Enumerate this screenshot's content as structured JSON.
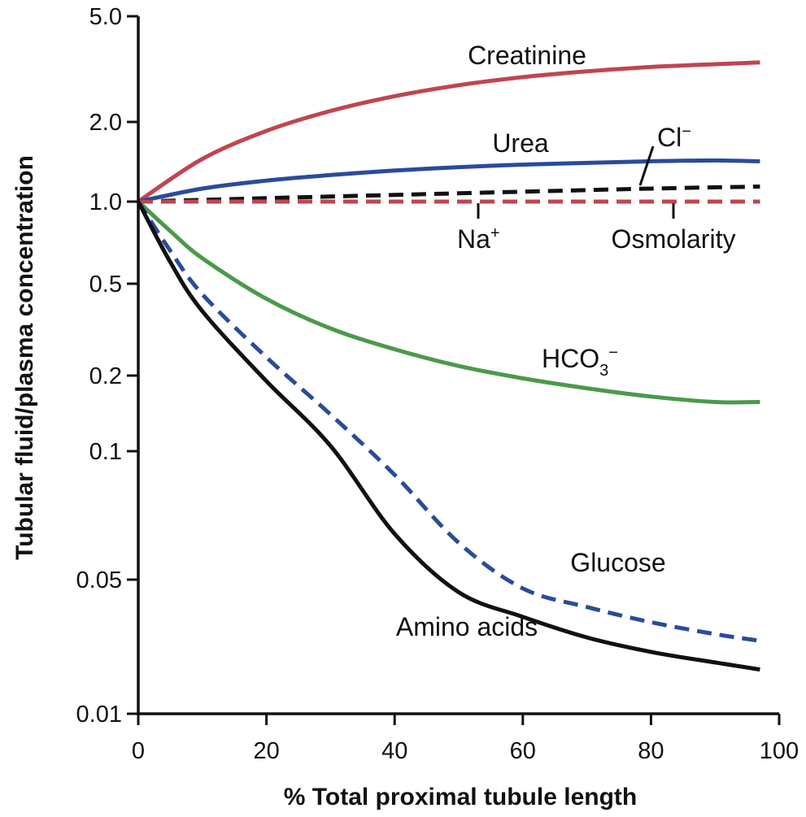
{
  "chart_data": {
    "type": "line",
    "xlabel": "% Total proximal tubule length",
    "ylabel": "Tubular fluid/plasma concentration",
    "xlim": [
      0,
      100
    ],
    "ylim": [
      0.01,
      5.0
    ],
    "yscale": "log",
    "grid": false,
    "x_ticks": [
      "0",
      "20",
      "40",
      "60",
      "80",
      "100"
    ],
    "y_ticks": [
      "0.01",
      "0.05",
      "0.1",
      "0.2",
      "0.5",
      "1.0",
      "2.0",
      "5.0"
    ],
    "series": [
      {
        "name": "Creatinine",
        "color": "#c0454f",
        "dash": false,
        "x": [
          0,
          10,
          20,
          30,
          40,
          50,
          60,
          70,
          80,
          90,
          97
        ],
        "y": [
          1.0,
          1.45,
          1.85,
          2.2,
          2.5,
          2.75,
          2.95,
          3.1,
          3.22,
          3.3,
          3.35
        ]
      },
      {
        "name": "Urea",
        "color": "#2a4b9b",
        "dash": false,
        "x": [
          0,
          10,
          20,
          30,
          40,
          50,
          60,
          70,
          80,
          90,
          97
        ],
        "y": [
          1.0,
          1.12,
          1.2,
          1.26,
          1.31,
          1.35,
          1.38,
          1.4,
          1.42,
          1.43,
          1.42
        ]
      },
      {
        "name": "Cl⁻",
        "color": "#111111",
        "dash": true,
        "x": [
          0,
          20,
          40,
          60,
          80,
          97
        ],
        "y": [
          1.0,
          1.03,
          1.06,
          1.09,
          1.12,
          1.14
        ]
      },
      {
        "name": "Na⁺",
        "color": "#c0454f",
        "dash": true,
        "x": [
          0,
          97
        ],
        "y": [
          1.0,
          1.0
        ]
      },
      {
        "name": "Osmolarity",
        "color": "#c0454f",
        "dash": true,
        "x": [
          0,
          97
        ],
        "y": [
          1.0,
          1.0
        ]
      },
      {
        "name": "HCO₃⁻",
        "color": "#4a9a4a",
        "dash": false,
        "x": [
          0,
          5,
          10,
          20,
          30,
          40,
          50,
          60,
          70,
          80,
          90,
          97
        ],
        "y": [
          1.0,
          0.78,
          0.62,
          0.43,
          0.32,
          0.26,
          0.22,
          0.195,
          0.178,
          0.165,
          0.157,
          0.157
        ]
      },
      {
        "name": "Glucose",
        "color": "#2a4b9b",
        "dash": true,
        "x": [
          0,
          5,
          10,
          20,
          30,
          40,
          50,
          60,
          70,
          80,
          90,
          97
        ],
        "y": [
          1.0,
          0.66,
          0.45,
          0.24,
          0.14,
          0.088,
          0.061,
          0.045,
          0.036,
          0.03,
          0.026,
          0.024
        ]
      },
      {
        "name": "Amino acids",
        "color": "#111111",
        "dash": false,
        "x": [
          0,
          5,
          10,
          20,
          30,
          40,
          50,
          60,
          70,
          80,
          90,
          97
        ],
        "y": [
          1.0,
          0.6,
          0.38,
          0.19,
          0.105,
          0.064,
          0.043,
          0.032,
          0.025,
          0.021,
          0.0185,
          0.017
        ]
      }
    ],
    "annotations": {
      "creatinine": "Creatinine",
      "urea": "Urea",
      "cl": "Cl",
      "cl_sup": "−",
      "na": "Na",
      "na_sup": "+",
      "osmolarity": "Osmolarity",
      "hco3": "HCO",
      "hco3_sub": "3",
      "hco3_sup": "−",
      "glucose": "Glucose",
      "amino_acids": "Amino acids"
    }
  }
}
